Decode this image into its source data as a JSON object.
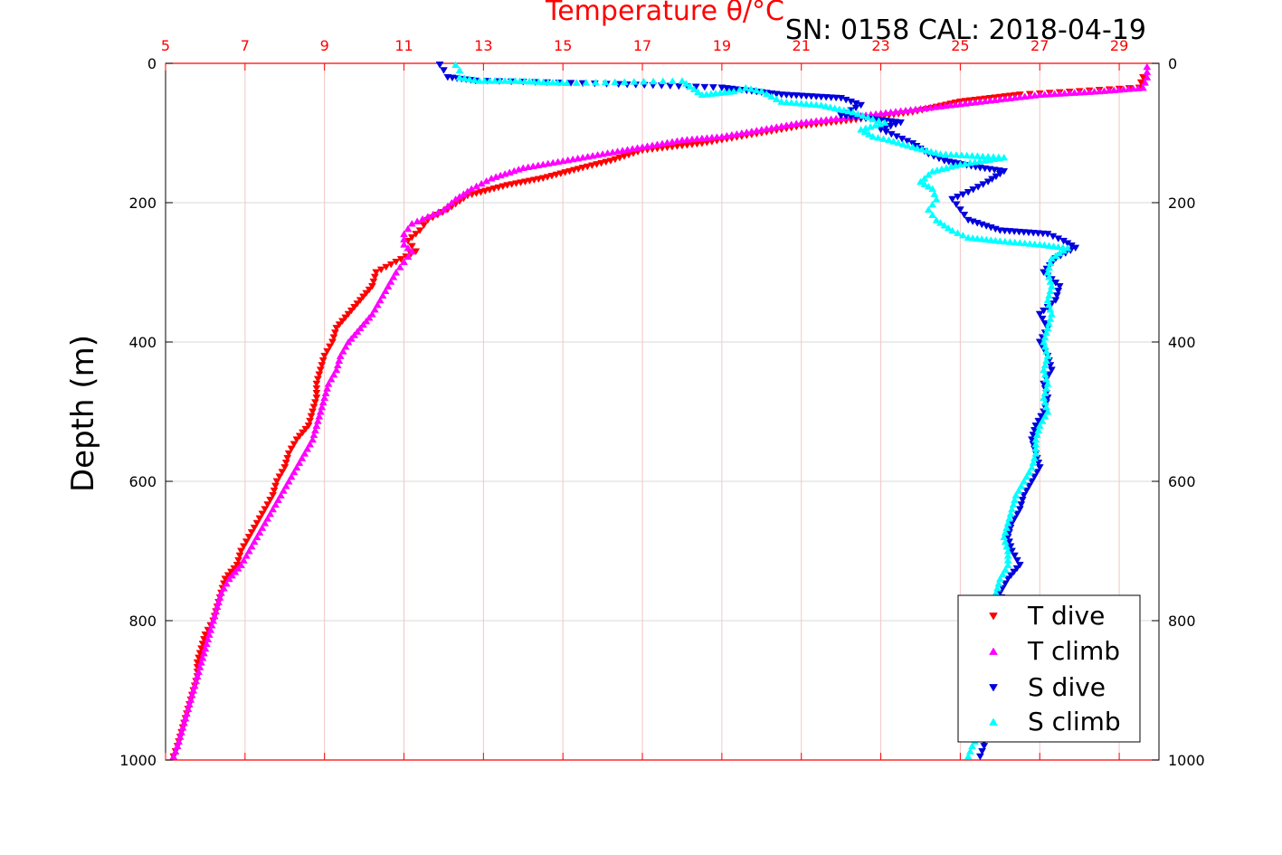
{
  "chart_data": {
    "type": "scatter",
    "title": "Temperature θ/°C",
    "subtitle": "SN: 0158  CAL: 2018-04-19",
    "ylabel": "Depth (m)",
    "xlim": [
      5,
      30
    ],
    "ylim": [
      0,
      1000
    ],
    "y_reversed": true,
    "x_ticks": [
      "5",
      "7",
      "9",
      "11",
      "13",
      "15",
      "17",
      "19",
      "21",
      "23",
      "25",
      "27",
      "29"
    ],
    "y_ticks": [
      "0",
      "200",
      "400",
      "600",
      "800",
      "1000"
    ],
    "grid": true,
    "legend_position": "bottom-right",
    "colors": {
      "title": "#ff0000",
      "x_axis": "#ff0000",
      "grid": "#d9d9d9",
      "x_grid": "#f3c6c6"
    },
    "series": [
      {
        "name": "T dive",
        "color": "#ff0000",
        "marker": "triangle-down",
        "points": [
          [
            29.6,
            20
          ],
          [
            29.5,
            35
          ],
          [
            26.5,
            45
          ],
          [
            25.0,
            55
          ],
          [
            23.8,
            70
          ],
          [
            22.5,
            80
          ],
          [
            21.0,
            90
          ],
          [
            19.5,
            105
          ],
          [
            18.5,
            115
          ],
          [
            17.0,
            125
          ],
          [
            16.2,
            140
          ],
          [
            15.5,
            150
          ],
          [
            14.5,
            165
          ],
          [
            13.6,
            175
          ],
          [
            12.6,
            190
          ],
          [
            12.1,
            210
          ],
          [
            11.6,
            225
          ],
          [
            11.4,
            240
          ],
          [
            11.1,
            255
          ],
          [
            11.3,
            270
          ],
          [
            10.8,
            285
          ],
          [
            10.3,
            300
          ],
          [
            10.2,
            320
          ],
          [
            9.9,
            340
          ],
          [
            9.6,
            360
          ],
          [
            9.3,
            380
          ],
          [
            9.2,
            400
          ],
          [
            9.0,
            420
          ],
          [
            8.9,
            440
          ],
          [
            8.8,
            460
          ],
          [
            8.8,
            480
          ],
          [
            8.7,
            500
          ],
          [
            8.6,
            520
          ],
          [
            8.3,
            540
          ],
          [
            8.1,
            560
          ],
          [
            8.0,
            580
          ],
          [
            7.8,
            600
          ],
          [
            7.7,
            620
          ],
          [
            7.5,
            640
          ],
          [
            7.3,
            660
          ],
          [
            7.1,
            680
          ],
          [
            6.9,
            700
          ],
          [
            6.8,
            720
          ],
          [
            6.5,
            740
          ],
          [
            6.4,
            760
          ],
          [
            6.3,
            780
          ],
          [
            6.2,
            800
          ],
          [
            6.0,
            820
          ],
          [
            5.9,
            840
          ],
          [
            5.8,
            860
          ],
          [
            5.8,
            880
          ],
          [
            5.7,
            900
          ],
          [
            5.6,
            920
          ],
          [
            5.5,
            940
          ],
          [
            5.4,
            960
          ],
          [
            5.3,
            980
          ],
          [
            5.2,
            995
          ]
        ]
      },
      {
        "name": "T climb",
        "color": "#ff00ff",
        "marker": "triangle-up",
        "points": [
          [
            29.7,
            5
          ],
          [
            29.7,
            20
          ],
          [
            29.6,
            35
          ],
          [
            28.5,
            40
          ],
          [
            27.0,
            45
          ],
          [
            25.5,
            55
          ],
          [
            24.0,
            65
          ],
          [
            22.5,
            75
          ],
          [
            21.0,
            85
          ],
          [
            20.0,
            95
          ],
          [
            19.0,
            105
          ],
          [
            18.0,
            110
          ],
          [
            17.0,
            120
          ],
          [
            16.0,
            130
          ],
          [
            15.0,
            140
          ],
          [
            14.0,
            150
          ],
          [
            13.2,
            165
          ],
          [
            12.7,
            180
          ],
          [
            12.3,
            195
          ],
          [
            12.0,
            210
          ],
          [
            11.6,
            220
          ],
          [
            11.2,
            230
          ],
          [
            11.0,
            245
          ],
          [
            11.0,
            260
          ],
          [
            11.2,
            270
          ],
          [
            11.0,
            285
          ],
          [
            10.8,
            300
          ],
          [
            10.6,
            320
          ],
          [
            10.4,
            340
          ],
          [
            10.2,
            360
          ],
          [
            9.9,
            380
          ],
          [
            9.6,
            400
          ],
          [
            9.4,
            420
          ],
          [
            9.3,
            440
          ],
          [
            9.1,
            460
          ],
          [
            9.0,
            480
          ],
          [
            8.9,
            500
          ],
          [
            8.8,
            520
          ],
          [
            8.7,
            540
          ],
          [
            8.5,
            560
          ],
          [
            8.3,
            580
          ],
          [
            8.1,
            600
          ],
          [
            7.9,
            620
          ],
          [
            7.7,
            640
          ],
          [
            7.5,
            660
          ],
          [
            7.3,
            680
          ],
          [
            7.1,
            700
          ],
          [
            6.9,
            720
          ],
          [
            6.6,
            740
          ],
          [
            6.4,
            760
          ],
          [
            6.3,
            780
          ],
          [
            6.2,
            800
          ],
          [
            6.1,
            820
          ],
          [
            6.0,
            840
          ],
          [
            5.9,
            860
          ],
          [
            5.8,
            880
          ],
          [
            5.7,
            900
          ],
          [
            5.6,
            920
          ],
          [
            5.5,
            940
          ],
          [
            5.4,
            960
          ],
          [
            5.3,
            980
          ],
          [
            5.2,
            995
          ]
        ]
      },
      {
        "name": "S dive",
        "color": "#0000dd",
        "marker": "triangle-down",
        "points": [
          [
            11.9,
            2
          ],
          [
            12.0,
            10
          ],
          [
            12.1,
            20
          ],
          [
            12.8,
            25
          ],
          [
            16.4,
            30
          ],
          [
            19.0,
            35
          ],
          [
            20.5,
            45
          ],
          [
            22.0,
            50
          ],
          [
            22.5,
            60
          ],
          [
            22.0,
            75
          ],
          [
            23.5,
            85
          ],
          [
            23.0,
            95
          ],
          [
            23.4,
            105
          ],
          [
            23.8,
            115
          ],
          [
            24.2,
            130
          ],
          [
            24.6,
            140
          ],
          [
            25.5,
            150
          ],
          [
            26.1,
            155
          ],
          [
            25.7,
            170
          ],
          [
            25.2,
            185
          ],
          [
            24.8,
            195
          ],
          [
            25.0,
            210
          ],
          [
            25.2,
            225
          ],
          [
            26.0,
            240
          ],
          [
            27.2,
            245
          ],
          [
            27.6,
            255
          ],
          [
            27.9,
            265
          ],
          [
            27.4,
            280
          ],
          [
            27.1,
            300
          ],
          [
            27.5,
            320
          ],
          [
            27.4,
            340
          ],
          [
            27.0,
            360
          ],
          [
            27.2,
            380
          ],
          [
            27.0,
            400
          ],
          [
            27.2,
            420
          ],
          [
            27.3,
            440
          ],
          [
            27.1,
            460
          ],
          [
            27.2,
            480
          ],
          [
            27.1,
            500
          ],
          [
            26.9,
            520
          ],
          [
            26.8,
            540
          ],
          [
            26.9,
            560
          ],
          [
            27.0,
            580
          ],
          [
            26.8,
            600
          ],
          [
            26.6,
            620
          ],
          [
            26.5,
            640
          ],
          [
            26.3,
            660
          ],
          [
            26.2,
            680
          ],
          [
            26.3,
            700
          ],
          [
            26.5,
            720
          ],
          [
            26.2,
            740
          ],
          [
            26.0,
            760
          ],
          [
            26.1,
            780
          ],
          [
            26.0,
            800
          ],
          [
            25.9,
            820
          ],
          [
            25.9,
            840
          ],
          [
            25.8,
            860
          ],
          [
            25.8,
            880
          ],
          [
            25.8,
            900
          ],
          [
            25.7,
            920
          ],
          [
            25.7,
            940
          ],
          [
            25.6,
            960
          ],
          [
            25.6,
            980
          ],
          [
            25.5,
            995
          ]
        ]
      },
      {
        "name": "S climb",
        "color": "#00ffff",
        "marker": "triangle-up",
        "points": [
          [
            12.3,
            2
          ],
          [
            12.4,
            10
          ],
          [
            12.4,
            20
          ],
          [
            12.9,
            25
          ],
          [
            13.8,
            25
          ],
          [
            15.1,
            28
          ],
          [
            18.0,
            25
          ],
          [
            18.5,
            45
          ],
          [
            19.3,
            40
          ],
          [
            19.6,
            35
          ],
          [
            20.0,
            40
          ],
          [
            20.5,
            55
          ],
          [
            21.5,
            60
          ],
          [
            22.3,
            70
          ],
          [
            22.8,
            80
          ],
          [
            23.1,
            85
          ],
          [
            22.5,
            95
          ],
          [
            22.8,
            105
          ],
          [
            23.2,
            110
          ],
          [
            23.8,
            120
          ],
          [
            24.5,
            130
          ],
          [
            26.1,
            135
          ],
          [
            25.0,
            145
          ],
          [
            24.3,
            155
          ],
          [
            24.0,
            170
          ],
          [
            24.3,
            180
          ],
          [
            24.4,
            195
          ],
          [
            24.2,
            210
          ],
          [
            24.4,
            225
          ],
          [
            24.8,
            240
          ],
          [
            25.2,
            250
          ],
          [
            26.0,
            255
          ],
          [
            27.0,
            260
          ],
          [
            27.7,
            265
          ],
          [
            27.3,
            280
          ],
          [
            27.2,
            300
          ],
          [
            27.3,
            320
          ],
          [
            27.2,
            340
          ],
          [
            27.3,
            360
          ],
          [
            27.2,
            380
          ],
          [
            27.1,
            400
          ],
          [
            27.2,
            420
          ],
          [
            27.1,
            440
          ],
          [
            27.2,
            460
          ],
          [
            27.1,
            480
          ],
          [
            27.2,
            500
          ],
          [
            27.0,
            520
          ],
          [
            26.9,
            540
          ],
          [
            26.9,
            560
          ],
          [
            26.8,
            580
          ],
          [
            26.6,
            600
          ],
          [
            26.4,
            620
          ],
          [
            26.3,
            640
          ],
          [
            26.2,
            660
          ],
          [
            26.1,
            680
          ],
          [
            26.2,
            700
          ],
          [
            26.2,
            720
          ],
          [
            26.0,
            740
          ],
          [
            25.9,
            760
          ],
          [
            25.9,
            780
          ],
          [
            25.9,
            800
          ],
          [
            25.8,
            820
          ],
          [
            25.7,
            840
          ],
          [
            25.7,
            860
          ],
          [
            25.7,
            880
          ],
          [
            25.6,
            900
          ],
          [
            25.6,
            920
          ],
          [
            25.5,
            940
          ],
          [
            25.5,
            960
          ],
          [
            25.3,
            980
          ],
          [
            25.2,
            995
          ]
        ]
      }
    ]
  }
}
